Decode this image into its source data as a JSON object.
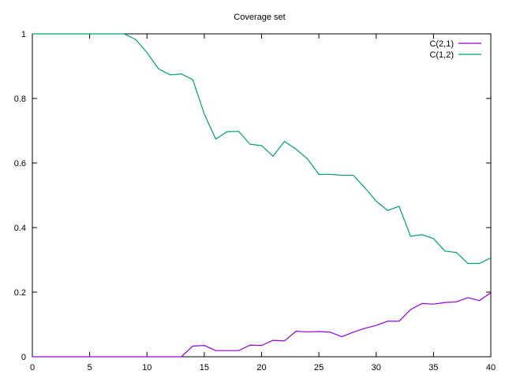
{
  "chart_data": {
    "type": "line",
    "title": "Coverage set",
    "xlabel": "",
    "ylabel": "",
    "xlim": [
      0,
      40
    ],
    "ylim": [
      0,
      1
    ],
    "xticks": [
      "0",
      "5",
      "10",
      "15",
      "20",
      "25",
      "30",
      "35",
      "40"
    ],
    "yticks": [
      "0",
      "0.2",
      "0.4",
      "0.6",
      "0.8",
      "1"
    ],
    "grid": false,
    "legend_position": "top-right",
    "x": [
      0,
      1,
      2,
      3,
      4,
      5,
      6,
      7,
      8,
      9,
      10,
      11,
      12,
      13,
      14,
      15,
      16,
      17,
      18,
      19,
      20,
      21,
      22,
      23,
      24,
      25,
      26,
      27,
      28,
      29,
      30,
      31,
      32,
      33,
      34,
      35,
      36,
      37,
      38,
      39,
      40
    ],
    "series": [
      {
        "name": "C(2,1)",
        "color": "#9400d3",
        "values": [
          0,
          0,
          0,
          0,
          0,
          0,
          0,
          0,
          0,
          0,
          0,
          0,
          0,
          0,
          0.033,
          0.035,
          0.019,
          0.019,
          0.019,
          0.036,
          0.035,
          0.051,
          0.049,
          0.079,
          0.077,
          0.078,
          0.076,
          0.062,
          0.076,
          0.088,
          0.097,
          0.11,
          0.11,
          0.146,
          0.165,
          0.163,
          0.168,
          0.17,
          0.183,
          0.174,
          0.198
        ]
      },
      {
        "name": "C(1,2)",
        "color": "#009e73",
        "values": [
          1,
          1,
          1,
          1,
          1,
          1,
          1,
          1,
          1,
          0.983,
          0.942,
          0.892,
          0.873,
          0.876,
          0.858,
          0.752,
          0.674,
          0.697,
          0.698,
          0.658,
          0.654,
          0.621,
          0.667,
          0.643,
          0.613,
          0.565,
          0.565,
          0.562,
          0.562,
          0.524,
          0.482,
          0.453,
          0.466,
          0.373,
          0.378,
          0.366,
          0.327,
          0.323,
          0.289,
          0.289,
          0.306
        ]
      }
    ]
  }
}
